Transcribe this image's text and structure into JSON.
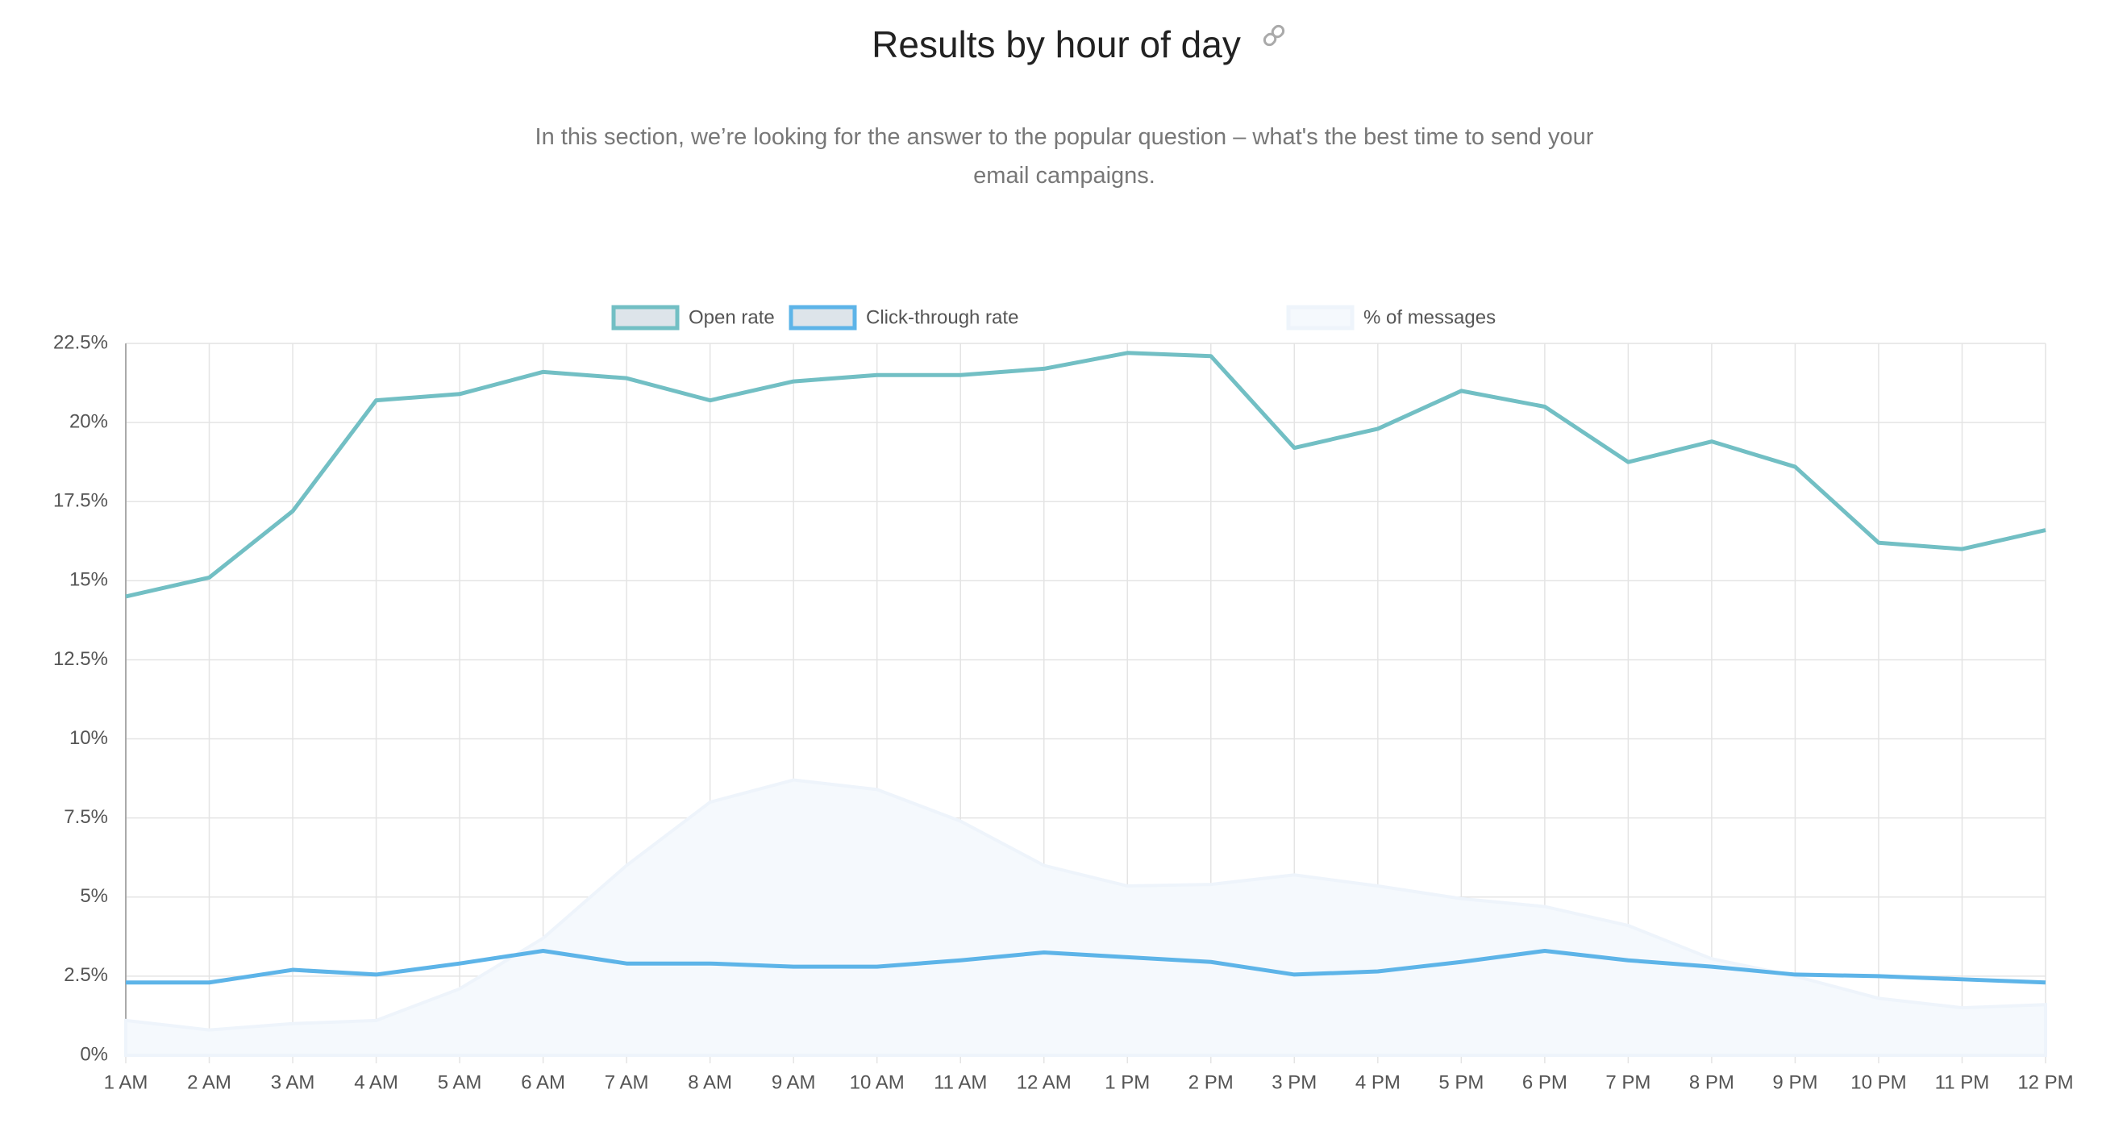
{
  "chart_data": {
    "type": "line",
    "title": "Results by hour of day",
    "subtitle": "In this section, we’re looking for the answer to the popular question – what's the best time to send your email campaigns.",
    "categories": [
      "1 AM",
      "2 AM",
      "3 AM",
      "4 AM",
      "5 AM",
      "6 AM",
      "7 AM",
      "8 AM",
      "9 AM",
      "10 AM",
      "11 AM",
      "12 AM",
      "1 PM",
      "2 PM",
      "3 PM",
      "4 PM",
      "5 PM",
      "6 PM",
      "7 PM",
      "8 PM",
      "9 PM",
      "10 PM",
      "11 PM",
      "12 PM"
    ],
    "series": [
      {
        "name": "Open rate",
        "color": "#72bfc4",
        "values": [
          14.5,
          15.1,
          17.2,
          20.7,
          20.9,
          21.6,
          21.4,
          20.7,
          21.3,
          21.5,
          21.5,
          21.7,
          22.2,
          22.1,
          19.2,
          19.8,
          21.0,
          20.5,
          18.75,
          19.4,
          18.6,
          16.2,
          16.0,
          16.6
        ]
      },
      {
        "name": "Click-through rate",
        "color": "#5db4e8",
        "values": [
          2.3,
          2.3,
          2.7,
          2.55,
          2.9,
          3.3,
          2.9,
          2.9,
          2.8,
          2.8,
          3.0,
          3.25,
          3.1,
          2.95,
          2.55,
          2.65,
          2.95,
          3.3,
          3.0,
          2.8,
          2.55,
          2.5,
          2.4,
          2.3
        ]
      },
      {
        "name": "% of messages",
        "color": "#eef4fb",
        "values": [
          1.1,
          0.8,
          1.0,
          1.1,
          2.1,
          3.7,
          6.0,
          8.0,
          8.7,
          8.4,
          7.4,
          6.0,
          5.35,
          5.4,
          5.7,
          5.35,
          4.95,
          4.7,
          4.1,
          3.05,
          2.5,
          1.8,
          1.5,
          1.6
        ]
      }
    ],
    "ylim": [
      0,
      22.5
    ],
    "yticks": [
      {
        "value": 0,
        "label": "0%"
      },
      {
        "value": 2.5,
        "label": "2.5%"
      },
      {
        "value": 5,
        "label": "5%"
      },
      {
        "value": 7.5,
        "label": "7.5%"
      },
      {
        "value": 10,
        "label": "10%"
      },
      {
        "value": 12.5,
        "label": "12.5%"
      },
      {
        "value": 15,
        "label": "15%"
      },
      {
        "value": 17.5,
        "label": "17.5%"
      },
      {
        "value": 20,
        "label": "20%"
      },
      {
        "value": 22.5,
        "label": "22.5%"
      }
    ],
    "grid": true
  }
}
